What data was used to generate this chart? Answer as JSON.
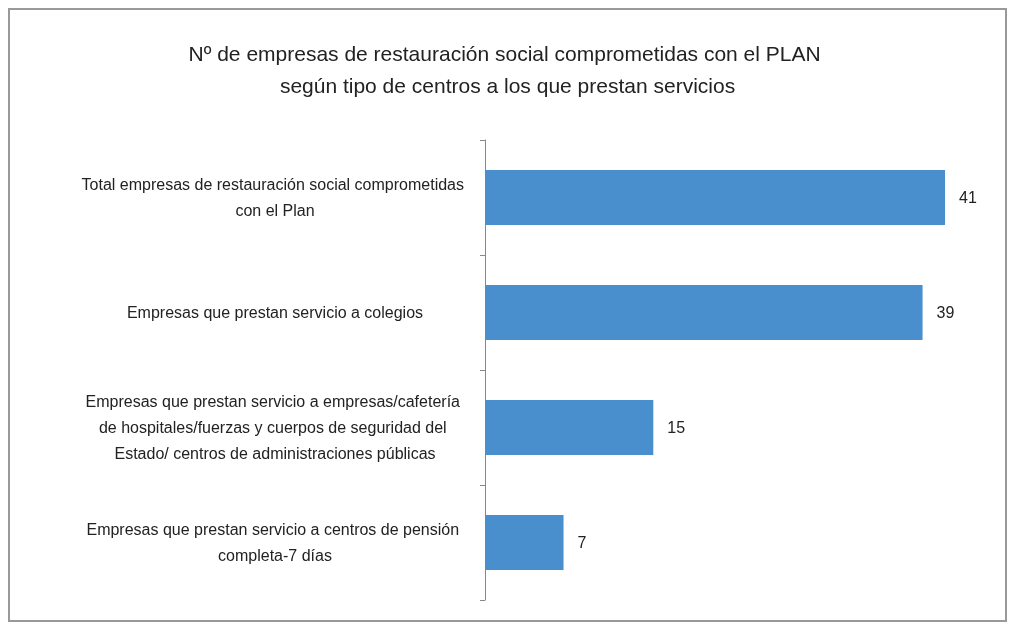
{
  "chart_data": {
    "type": "bar",
    "orientation": "horizontal",
    "title": "Nº de empresas de restauración social comprometidas con el PLAN según tipo de centros a los que prestan servicios",
    "categories": [
      "Total empresas de restauración social comprometidas con el Plan",
      "Empresas que prestan servicio a colegios",
      "Empresas que prestan servicio a empresas/cafetería de hospitales/fuerzas y cuerpos de seguridad del Estado/ centros de administraciones públicas",
      "Empresas que prestan servicio a centros de pensión completa-7 días"
    ],
    "values": [
      41,
      39,
      15,
      7
    ],
    "color": "#4a8fcd",
    "data_labels": true
  }
}
